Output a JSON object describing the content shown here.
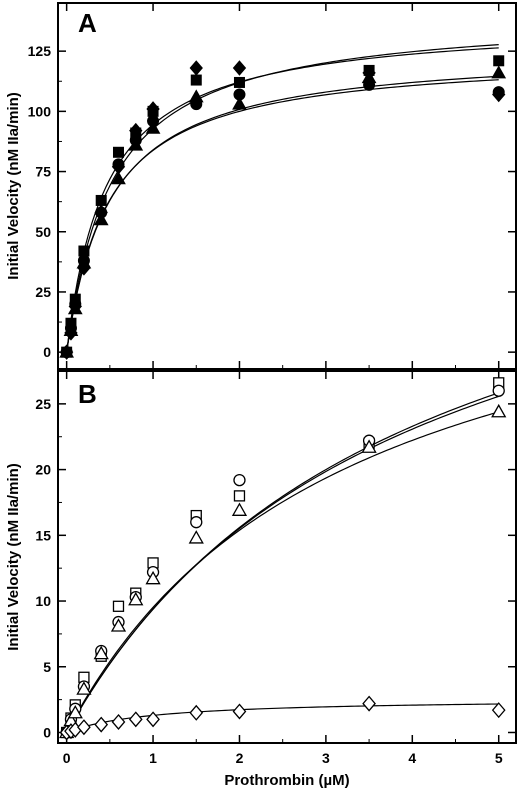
{
  "x_axis_label": "Prothrombin (µM)",
  "chart_data": [
    {
      "panel": "A",
      "type": "scatter",
      "title": "",
      "xlabel": "",
      "ylabel": "Initial Velocity (nM IIa/min)",
      "xlim": [
        -0.1,
        5.2
      ],
      "ylim": [
        -7,
        145
      ],
      "xticks": [
        0,
        1,
        2,
        3,
        4,
        5
      ],
      "yticks": [
        0,
        25,
        50,
        75,
        100,
        125
      ],
      "marker_fill": "filled",
      "x": [
        0,
        0.05,
        0.1,
        0.2,
        0.4,
        0.6,
        0.8,
        1.0,
        1.5,
        2.0,
        3.5,
        5.0
      ],
      "series": [
        {
          "marker": "square",
          "values": [
            0,
            12,
            22,
            42,
            63,
            83,
            91,
            100,
            113,
            112,
            117,
            121
          ],
          "fit": {
            "vmax": 141,
            "km": 0.52
          }
        },
        {
          "marker": "circle",
          "values": [
            0,
            10,
            20,
            38,
            58,
            78,
            88,
            96,
            103,
            107,
            111,
            108
          ],
          "fit": {
            "vmax": 124,
            "km": 0.48
          }
        },
        {
          "marker": "triangle",
          "values": [
            0,
            9,
            18,
            37,
            55,
            72,
            86,
            93,
            106,
            103,
            114,
            116
          ],
          "fit": {
            "vmax": 126,
            "km": 0.5
          }
        },
        {
          "marker": "diamond",
          "values": [
            0,
            8,
            19,
            35,
            58,
            77,
            92,
            101,
            118,
            118,
            116,
            107
          ],
          "fit": {
            "vmax": 138,
            "km": 0.46
          }
        }
      ]
    },
    {
      "panel": "B",
      "type": "scatter",
      "title": "",
      "xlabel": "Prothrombin (µM)",
      "ylabel": "Initial Velocity (nM IIa/min)",
      "xlim": [
        -0.1,
        5.2
      ],
      "ylim": [
        -0.8,
        27.5
      ],
      "xticks": [
        0,
        1,
        2,
        3,
        4,
        5
      ],
      "yticks": [
        0,
        5,
        10,
        15,
        20,
        25
      ],
      "marker_fill": "open",
      "x": [
        0,
        0.05,
        0.1,
        0.2,
        0.4,
        0.6,
        0.8,
        1.0,
        1.5,
        2.0,
        3.5,
        5.0
      ],
      "series": [
        {
          "marker": "square",
          "values": [
            0,
            1.1,
            2.1,
            4.2,
            5.8,
            9.6,
            10.6,
            12.9,
            16.5,
            18.0,
            22.0,
            26.6
          ],
          "fit": {
            "vmax": 46,
            "km": 3.9
          }
        },
        {
          "marker": "circle",
          "values": [
            0,
            1.0,
            1.8,
            3.5,
            6.2,
            8.4,
            10.3,
            12.2,
            16.0,
            19.2,
            22.2,
            26.0
          ],
          "fit": {
            "vmax": 45,
            "km": 3.8
          }
        },
        {
          "marker": "triangle",
          "values": [
            0,
            0.9,
            1.5,
            3.3,
            6.0,
            8.1,
            10.1,
            11.7,
            14.8,
            16.9,
            21.7,
            24.4
          ],
          "fit": {
            "vmax": 40,
            "km": 3.2
          }
        },
        {
          "marker": "diamond",
          "values": [
            0,
            0.1,
            0.2,
            0.4,
            0.6,
            0.8,
            1.0,
            1.0,
            1.5,
            1.6,
            2.2,
            1.7
          ],
          "fit": {
            "vmax": 2.6,
            "km": 1.0
          }
        }
      ]
    }
  ]
}
